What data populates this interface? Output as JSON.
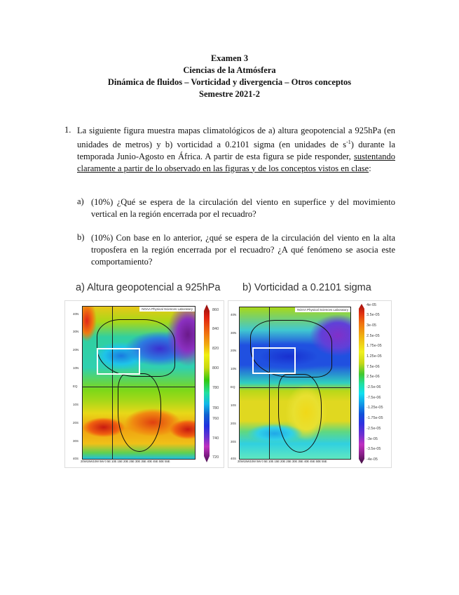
{
  "header": {
    "line1": "Examen 3",
    "line2": "Ciencias de la Atmósfera",
    "line3": "Dinámica de fluidos – Vorticidad y divergencia – Otros conceptos",
    "line4": "Semestre 2021-2"
  },
  "question1": {
    "number": "1.",
    "text_part1": "La siguiente figura muestra mapas climatológicos de a) altura geopotencial a 925hPa (en unidades de metros) y b) vorticidad a 0.2101 sigma (en unidades de s",
    "superscript": "-1",
    "text_part2": ") durante la temporada Junio-Agosto en África. A partir de esta figura se pide responder, ",
    "underlined": "sustentando claramente a partir de lo observado en las figuras y de los conceptos vistos en clase",
    "text_end": ":",
    "subitems": [
      {
        "label": "a)",
        "text": "(10%) ¿Qué se espera de la circulación del viento en superfice y del movimiento vertical en la región encerrada por el recuadro?"
      },
      {
        "label": "b)",
        "text": "(10%) Con base en lo anterior, ¿qué se espera de la circulación del viento en la alta troposfera en la región encerrada por el recuadro? ¿A qué fenómeno se asocia este comportamiento?"
      }
    ]
  },
  "figures": [
    {
      "title": "a) Altura geopotencial a 925hPa",
      "credit": "NOAA Physical Sciences Laboratory",
      "colorbar_labels": [
        "860",
        "840",
        "820",
        "800",
        "780",
        "780",
        "760",
        "740",
        "720"
      ]
    },
    {
      "title": "b) Vorticidad a 0.2101 sigma",
      "credit": "NOAA Physical Sciences Laboratory",
      "colorbar_labels": [
        "4e-05",
        "3.5e-05",
        "3e-05",
        "2.5e-05",
        "1.75e-05",
        "1.25e-05",
        "7.5e-06",
        "2.5e-06",
        "-2.5e-06",
        "-7.5e-06",
        "-1.25e-05",
        "-1.75e-05",
        "-2.5e-05",
        "-3e-05",
        "-3.5e-05",
        "-4e-05"
      ]
    }
  ],
  "lat_labels": [
    "40N",
    "30N",
    "20N",
    "10N",
    "EQ",
    "10S",
    "20S",
    "30S",
    "40S"
  ],
  "lon_labels": "20W15W10W 5W  0  5E 10E 15E 20E 25E 30E 35E 40E 45E 50E 55E"
}
